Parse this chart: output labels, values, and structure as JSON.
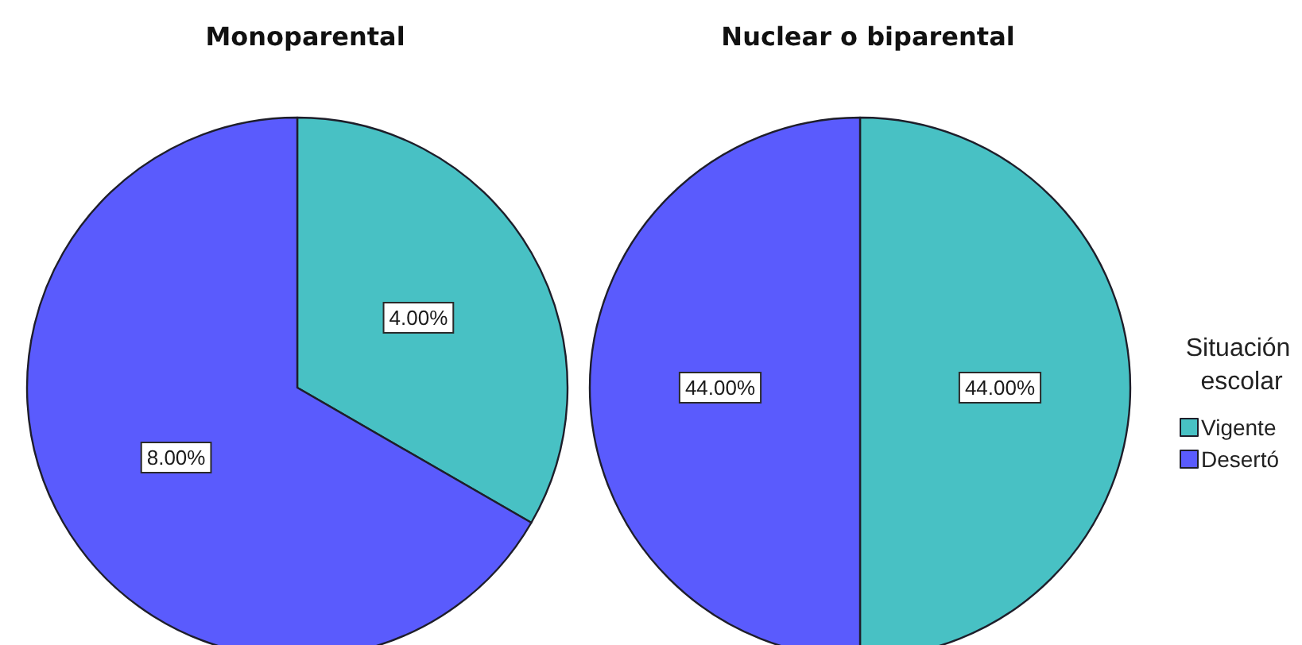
{
  "chart_data": {
    "type": "pie",
    "categories": [
      "Vigente",
      "Desertó"
    ],
    "colors": [
      "#48c1c4",
      "#5a5bfd"
    ],
    "series": [
      {
        "name": "Monoparental",
        "values": [
          4,
          8
        ],
        "value_labels": [
          "4.00%",
          "8.00%"
        ]
      },
      {
        "name": "Nuclear o biparental",
        "values": [
          44,
          44
        ],
        "value_labels": [
          "44.00%",
          "44.00%"
        ]
      }
    ],
    "legend": "right",
    "legend_title": "Situación escolar"
  }
}
